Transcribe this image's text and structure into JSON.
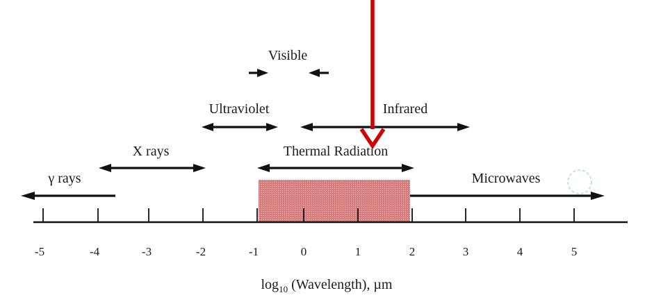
{
  "diagram": {
    "axis": {
      "title_main": "log",
      "title_sub": "10",
      "title_rest": " (Wavelength), µm",
      "ticks": [
        "-5",
        "-4",
        "-3",
        "-2",
        "-1",
        "0",
        "1",
        "2",
        "3",
        "4",
        "5"
      ]
    },
    "bands": [
      {
        "id": "gamma",
        "label": "γ rays"
      },
      {
        "id": "xrays",
        "label": "X rays"
      },
      {
        "id": "ultraviolet",
        "label": "Ultraviolet"
      },
      {
        "id": "visible",
        "label": "Visible"
      },
      {
        "id": "infrared",
        "label": "Infrared"
      },
      {
        "id": "thermal",
        "label": "Thermal Radiation"
      },
      {
        "id": "microwaves",
        "label": "Microwaves"
      }
    ],
    "thermal_fill_color": "#d98080",
    "pointer_color": "#d00000"
  }
}
